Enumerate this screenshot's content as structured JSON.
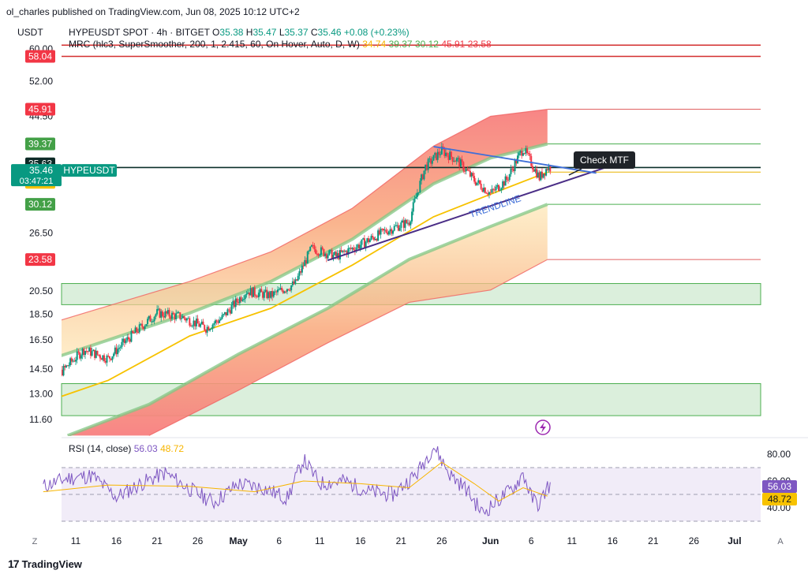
{
  "publisher_line": "ol_charles published on TradingView.com, Jun 08, 2025 10:12 UTC+2",
  "footer_brand": "TradingView",
  "footer_mark": "17",
  "currency_label": "USDT",
  "legend": {
    "main": "HYPEUSDT SPOT · 4h · BITGET",
    "o_label": "O",
    "o": "35.38",
    "h_label": "H",
    "h": "35.47",
    "l_label": "L",
    "l": "35.37",
    "c_label": "C",
    "c": "35.46",
    "change": "+0.08 (+0.23%)",
    "mrc": "MRC (hlc3, SuperSmoother, 200, 1, 2.415, 60, On Hover, Auto, D, W)",
    "mrc_values": [
      "34.74",
      "39.37",
      "30.12",
      "45.91",
      "23.58"
    ],
    "mrc_value_colors": [
      "#f7b500",
      "#4caf50",
      "#4caf50",
      "#f23645",
      "#f23645"
    ],
    "rsi": "RSI (14, close)",
    "rsi_values": [
      "56.03",
      "48.72"
    ],
    "rsi_value_colors": [
      "#7e57c2",
      "#f7b500"
    ]
  },
  "colors": {
    "up": "#089981",
    "down": "#f23645",
    "mean": "#f7c200",
    "green_band": "#81c784",
    "trendline": "#4a2d86",
    "resistance": "#3f6fd8",
    "rsi_line": "#7e57c2",
    "rsi_ma": "#f7b500",
    "current_price": "#087f6b",
    "red_line": "#d32f2f"
  },
  "chart_data": [
    {
      "type": "candlestick",
      "symbol": "HYPEUSDT",
      "timeframe": "4h",
      "y_scale": "log",
      "ylim": [
        11.0,
        62.0
      ],
      "y_ticks": [
        "60.00",
        "52.00",
        "44.50",
        "26.50",
        "20.50",
        "18.50",
        "16.50",
        "14.50",
        "13.00",
        "11.60"
      ],
      "x_ticks": [
        "11",
        "16",
        "21",
        "26",
        "May",
        "6",
        "11",
        "16",
        "21",
        "26",
        "Jun",
        "6",
        "11",
        "16",
        "21",
        "26",
        "Jul"
      ],
      "x_ticks_date": [
        "2025-04-11",
        "2025-04-16",
        "2025-04-21",
        "2025-04-26",
        "2025-05-01",
        "2025-05-06",
        "2025-05-11",
        "2025-05-16",
        "2025-05-21",
        "2025-05-26",
        "2025-06-01",
        "2025-06-06",
        "2025-06-11",
        "2025-06-16",
        "2025-06-21",
        "2025-06-26",
        "2025-07-01"
      ],
      "price_path": [
        [
          "2025-04-07",
          11.9
        ],
        [
          "2025-04-09",
          14.2
        ],
        [
          "2025-04-12",
          15.8
        ],
        [
          "2025-04-15",
          15.2
        ],
        [
          "2025-04-18",
          16.9
        ],
        [
          "2025-04-21",
          18.6
        ],
        [
          "2025-04-24",
          18.3
        ],
        [
          "2025-04-27",
          17.4
        ],
        [
          "2025-04-29",
          18.2
        ],
        [
          "2025-05-02",
          20.5
        ],
        [
          "2025-05-05",
          20.1
        ],
        [
          "2025-05-08",
          21.2
        ],
        [
          "2025-05-10",
          24.8
        ],
        [
          "2025-05-13",
          23.9
        ],
        [
          "2025-05-16",
          25.2
        ],
        [
          "2025-05-19",
          26.7
        ],
        [
          "2025-05-22",
          27.9
        ],
        [
          "2025-05-24",
          35.6
        ],
        [
          "2025-05-26",
          38.2
        ],
        [
          "2025-05-28",
          36.5
        ],
        [
          "2025-05-30",
          33.5
        ],
        [
          "2025-06-01",
          31.6
        ],
        [
          "2025-06-03",
          33.6
        ],
        [
          "2025-06-05",
          38.6
        ],
        [
          "2025-06-06",
          36.2
        ],
        [
          "2025-06-07",
          33.9
        ],
        [
          "2025-06-08",
          35.46
        ]
      ],
      "mrc": {
        "mean_path": [
          [
            "2025-04-07",
            12.5
          ],
          [
            "2025-04-15",
            13.8
          ],
          [
            "2025-04-25",
            16.8
          ],
          [
            "2025-05-05",
            19.0
          ],
          [
            "2025-05-15",
            23.0
          ],
          [
            "2025-05-25",
            28.5
          ],
          [
            "2025-06-01",
            31.5
          ],
          [
            "2025-06-08",
            34.74
          ]
        ],
        "inner_upper_path": [
          [
            "2025-04-07",
            15.0
          ],
          [
            "2025-04-15",
            16.5
          ],
          [
            "2025-04-25",
            18.6
          ],
          [
            "2025-05-05",
            21.4
          ],
          [
            "2025-05-15",
            25.8
          ],
          [
            "2025-05-25",
            33.0
          ],
          [
            "2025-06-01",
            37.0
          ],
          [
            "2025-06-08",
            39.37
          ]
        ],
        "inner_lower_path": [
          [
            "2025-04-10",
            10.8
          ],
          [
            "2025-04-20",
            12.4
          ],
          [
            "2025-05-01",
            15.5
          ],
          [
            "2025-05-12",
            19.0
          ],
          [
            "2025-05-22",
            23.6
          ],
          [
            "2025-06-01",
            27.3
          ],
          [
            "2025-06-08",
            30.12
          ]
        ],
        "outer_upper_path": [
          [
            "2025-04-07",
            17.6
          ],
          [
            "2025-04-15",
            19.2
          ],
          [
            "2025-04-25",
            21.4
          ],
          [
            "2025-05-05",
            24.4
          ],
          [
            "2025-05-15",
            29.6
          ],
          [
            "2025-05-25",
            39.0
          ],
          [
            "2025-06-01",
            44.5
          ],
          [
            "2025-06-08",
            45.91
          ]
        ],
        "outer_lower_path": [
          [
            "2025-04-20",
            10.8
          ],
          [
            "2025-05-01",
            13.2
          ],
          [
            "2025-05-12",
            16.3
          ],
          [
            "2025-05-22",
            19.5
          ],
          [
            "2025-06-01",
            20.6
          ],
          [
            "2025-06-08",
            23.58
          ]
        ],
        "levels": {
          "mean": 34.74,
          "r1": 39.37,
          "s1": 30.12,
          "r2": 45.91,
          "s2": 23.58
        }
      },
      "horizontal_lines": [
        {
          "price": 61.0,
          "color": "red"
        },
        {
          "price": 58.04,
          "color": "red"
        },
        {
          "price": 35.46,
          "color": "dark"
        }
      ],
      "zones": [
        {
          "from": 19.3,
          "to": 21.2
        },
        {
          "from": 11.8,
          "to": 13.6
        }
      ],
      "trendline": {
        "from": [
          "2025-05-12",
          23.5
        ],
        "to": [
          "2025-06-15",
          35.4
        ],
        "label": "TRENDLINE"
      },
      "resistance_line": {
        "from": [
          "2025-05-25",
          38.9
        ],
        "to": [
          "2025-06-14",
          34.6
        ]
      },
      "callout": "Check MTF",
      "price_labels": [
        {
          "text": "58.04",
          "kind": "red"
        },
        {
          "text": "45.91",
          "kind": "red"
        },
        {
          "text": "39.37",
          "kind": "green"
        },
        {
          "text": "35.63",
          "kind": "dark"
        },
        {
          "text": "35.46",
          "kind": "teal"
        },
        {
          "text": "03:47:21",
          "kind": "teal"
        },
        {
          "text": "34.74",
          "kind": "yellow"
        },
        {
          "text": "30.12",
          "kind": "green"
        },
        {
          "text": "23.58",
          "kind": "red"
        }
      ],
      "symbol_tag": "HYPEUSDT"
    },
    {
      "type": "line",
      "name": "RSI (14, close)",
      "ylim": [
        28,
        92
      ],
      "y_ticks": [
        "80.00",
        "60.00",
        "40.00"
      ],
      "bands": [
        30,
        50,
        70
      ],
      "rsi_path": [
        [
          "2025-04-07",
          56
        ],
        [
          "2025-04-10",
          62
        ],
        [
          "2025-04-13",
          64
        ],
        [
          "2025-04-16",
          48
        ],
        [
          "2025-04-19",
          58
        ],
        [
          "2025-04-22",
          66
        ],
        [
          "2025-04-25",
          54
        ],
        [
          "2025-04-28",
          44
        ],
        [
          "2025-05-01",
          58
        ],
        [
          "2025-05-04",
          55
        ],
        [
          "2025-05-07",
          47
        ],
        [
          "2025-05-09",
          76
        ],
        [
          "2025-05-11",
          58
        ],
        [
          "2025-05-14",
          60
        ],
        [
          "2025-05-17",
          52
        ],
        [
          "2025-05-20",
          50
        ],
        [
          "2025-05-23",
          66
        ],
        [
          "2025-05-25",
          86
        ],
        [
          "2025-05-27",
          65
        ],
        [
          "2025-05-29",
          54
        ],
        [
          "2025-05-31",
          36
        ],
        [
          "2025-06-02",
          46
        ],
        [
          "2025-06-04",
          56
        ],
        [
          "2025-06-05",
          66
        ],
        [
          "2025-06-06",
          48
        ],
        [
          "2025-06-07",
          42
        ],
        [
          "2025-06-08",
          56
        ]
      ],
      "ma_path": [
        [
          "2025-04-07",
          52
        ],
        [
          "2025-04-15",
          57
        ],
        [
          "2025-04-25",
          56
        ],
        [
          "2025-05-03",
          52
        ],
        [
          "2025-05-09",
          60
        ],
        [
          "2025-05-16",
          58
        ],
        [
          "2025-05-22",
          55
        ],
        [
          "2025-05-26",
          74
        ],
        [
          "2025-05-30",
          58
        ],
        [
          "2025-06-02",
          45
        ],
        [
          "2025-06-05",
          55
        ],
        [
          "2025-06-08",
          48.72
        ]
      ],
      "labels": [
        {
          "text": "56.03",
          "kind": "purple"
        },
        {
          "text": "48.72",
          "kind": "yellow"
        }
      ]
    }
  ],
  "corner_left": "Z",
  "corner_right": "A"
}
